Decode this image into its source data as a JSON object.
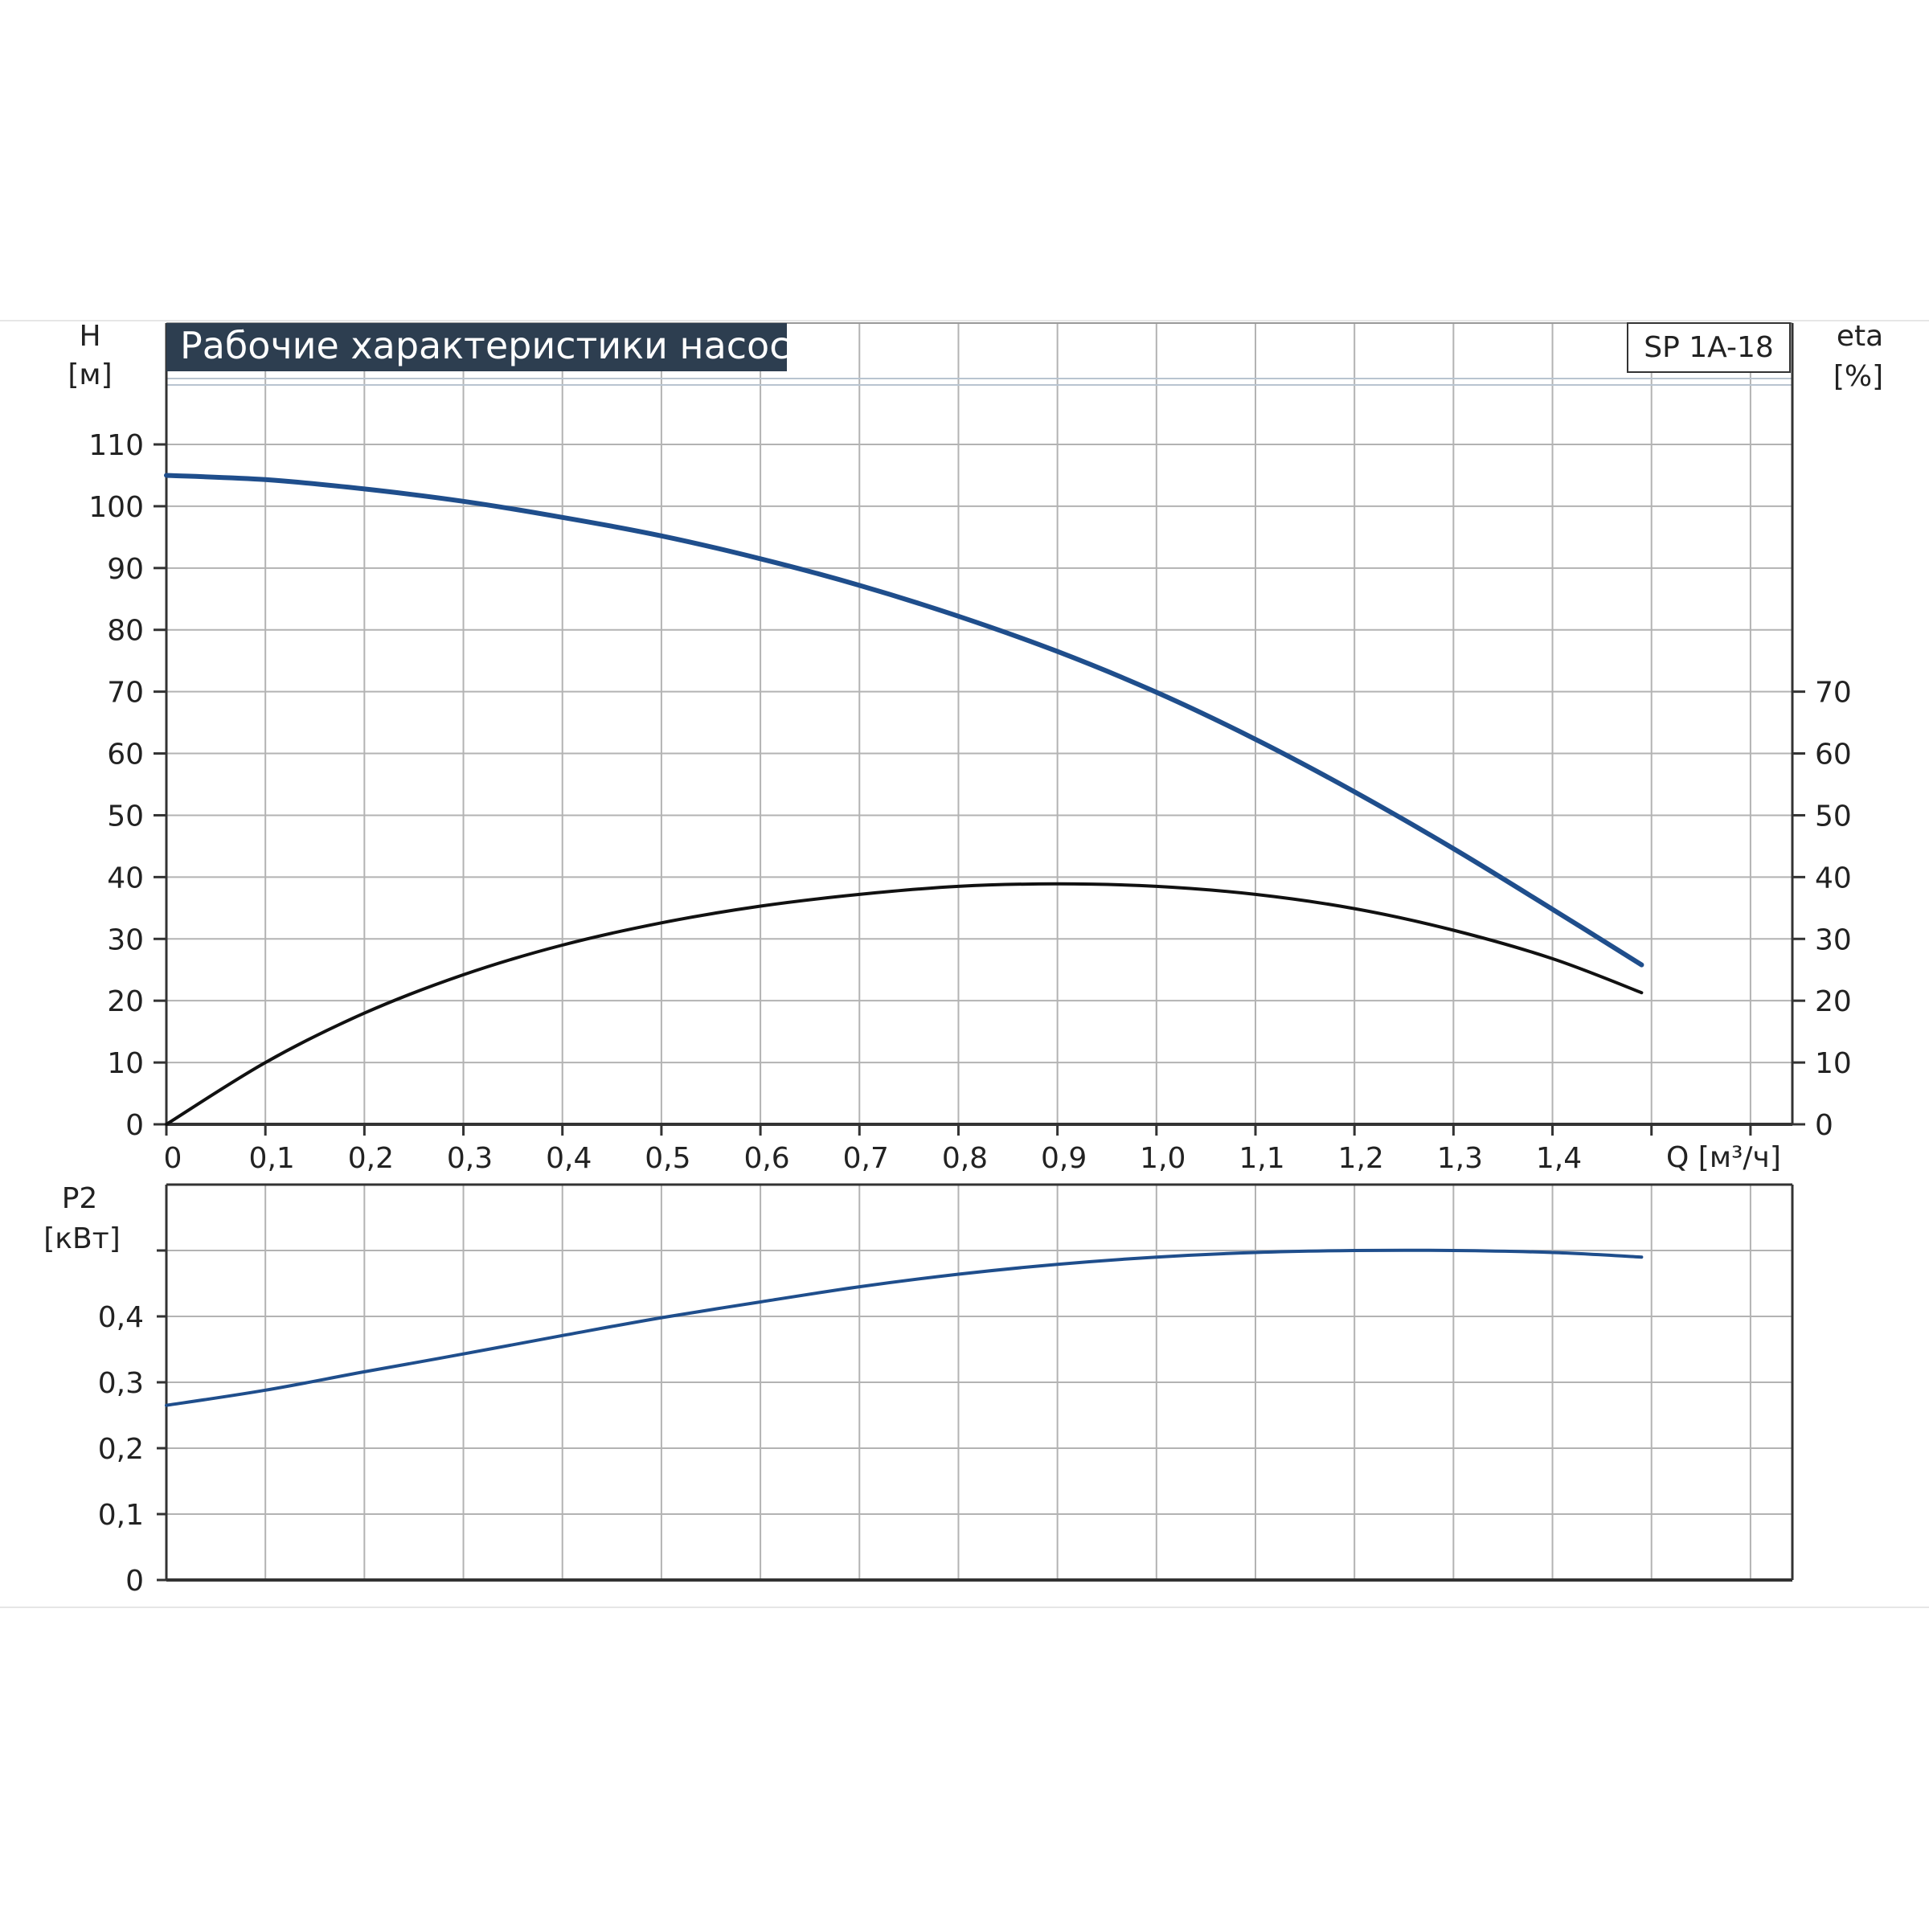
{
  "chart_data": [
    {
      "type": "line",
      "title": "Рабочие характеристики насоса",
      "model": "SP 1A-18",
      "xlabel": "Q [м³/ч]",
      "ylabel_left": [
        "H",
        "[м]"
      ],
      "ylabel_right": [
        "eta",
        "[%]"
      ],
      "xlim": [
        0,
        1.6
      ],
      "ylim": [
        0,
        120
      ],
      "ylim_right": [
        0,
        120
      ],
      "grid": true,
      "x_ticks": [
        "0",
        "0,1",
        "0,2",
        "0,3",
        "0,4",
        "0,5",
        "0,6",
        "0,7",
        "0,8",
        "0,9",
        "1,0",
        "1,1",
        "1,2",
        "1,3",
        "1,4"
      ],
      "y_ticks_left": [
        "0",
        "10",
        "20",
        "30",
        "40",
        "50",
        "60",
        "70",
        "80",
        "90",
        "100",
        "110"
      ],
      "y_ticks_right": [
        "0",
        "10",
        "20",
        "30",
        "40",
        "50",
        "60",
        "70"
      ],
      "series": [
        {
          "axis": "left",
          "color": "#1f4e8c",
          "x": [
            0,
            0.1,
            0.2,
            0.3,
            0.4,
            0.5,
            0.6,
            0.7,
            0.8,
            0.9,
            1.0,
            1.1,
            1.2,
            1.3,
            1.4,
            1.49
          ],
          "values": [
            105,
            104.3,
            102.8,
            100.8,
            98.2,
            95.2,
            91.5,
            87.2,
            82.2,
            76.5,
            69.9,
            62.3,
            53.8,
            44.6,
            34.8,
            25.8
          ]
        },
        {
          "axis": "right",
          "color": "#111111",
          "x": [
            0,
            0.1,
            0.2,
            0.3,
            0.4,
            0.5,
            0.6,
            0.7,
            0.8,
            0.9,
            1.0,
            1.1,
            1.2,
            1.3,
            1.4,
            1.49
          ],
          "values": [
            0,
            10,
            18,
            24.2,
            29,
            32.6,
            35.3,
            37.2,
            38.5,
            38.9,
            38.5,
            37.2,
            34.9,
            31.4,
            26.8,
            21.3
          ]
        }
      ]
    },
    {
      "type": "line",
      "xlabel": "",
      "ylabel": [
        "P2",
        "[кВт]"
      ],
      "xlim": [
        0,
        1.6
      ],
      "ylim": [
        0,
        0.6
      ],
      "grid": true,
      "y_ticks": [
        "0",
        "0,1",
        "0,2",
        "0,3",
        "0,4"
      ],
      "series": [
        {
          "color": "#1f4e8c",
          "x": [
            0,
            0.1,
            0.2,
            0.3,
            0.4,
            0.5,
            0.6,
            0.7,
            0.8,
            0.9,
            1.0,
            1.1,
            1.2,
            1.3,
            1.4,
            1.49
          ],
          "values": [
            0.265,
            0.288,
            0.316,
            0.343,
            0.371,
            0.398,
            0.422,
            0.445,
            0.464,
            0.479,
            0.49,
            0.497,
            0.5,
            0.5,
            0.497,
            0.49
          ]
        }
      ]
    }
  ]
}
